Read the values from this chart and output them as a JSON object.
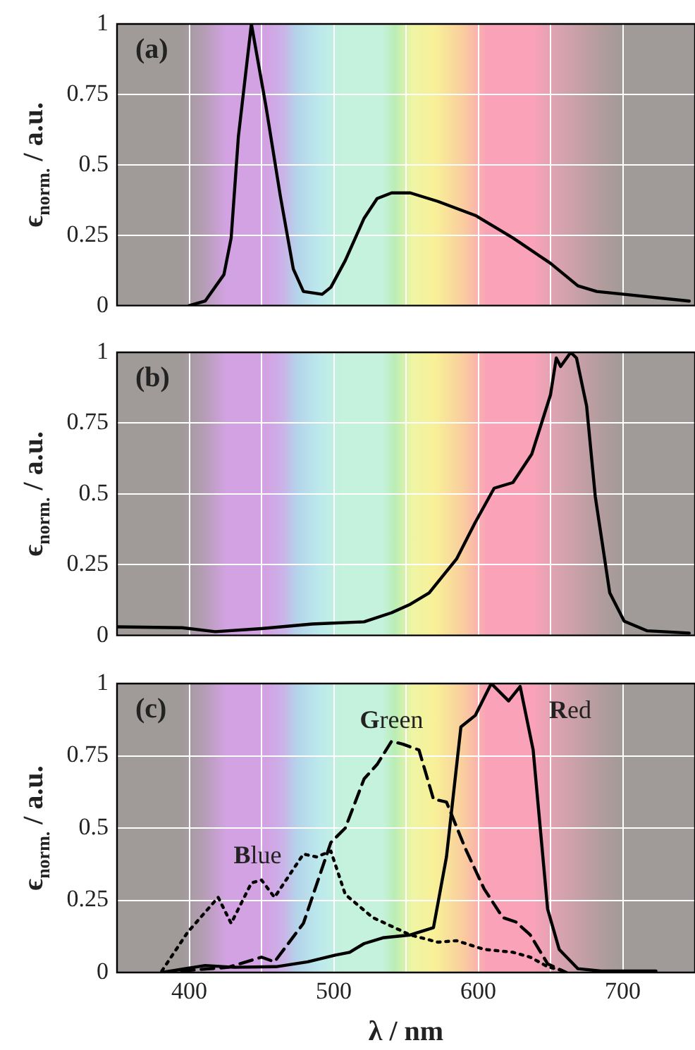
{
  "chart_data": [
    {
      "type": "line",
      "title": "(a)",
      "ylabel": "ϵ$_{norm.}$ / a.u.",
      "xlim": [
        350,
        750
      ],
      "xticks": [
        400,
        {
          "value": 450,
          "label": null
        },
        500,
        {
          "value": 550,
          "label": null
        },
        600,
        {
          "value": 650,
          "label": null
        },
        700
      ],
      "ylim": [
        0,
        1
      ],
      "yticks": [
        0,
        0.25,
        0.5,
        0.75,
        1
      ],
      "grid": true,
      "tick_labels": "y",
      "marker": "none",
      "line_style": "solid",
      "series": [
        {
          "color": "#000000",
          "x": [
            400,
            411,
            424,
            429,
            434,
            443,
            453,
            463,
            472,
            479,
            492,
            498,
            508,
            521,
            530,
            540,
            553,
            572,
            598,
            624,
            650,
            669,
            682,
            701,
            746
          ],
          "values": [
            0,
            0.016,
            0.11,
            0.24,
            0.6,
            1,
            0.71,
            0.39,
            0.13,
            0.05,
            0.04,
            0.065,
            0.16,
            0.31,
            0.38,
            0.4,
            0.4,
            0.37,
            0.32,
            0.24,
            0.15,
            0.07,
            0.05,
            0.04,
            0.016
          ]
        }
      ]
    },
    {
      "type": "line",
      "title": "(b)",
      "ylabel": "ϵ$_{norm.}$ / a.u.",
      "xlim": [
        350,
        750
      ],
      "xticks": [
        400,
        {
          "value": 450,
          "label": null
        },
        500,
        {
          "value": 550,
          "label": null
        },
        600,
        {
          "value": 650,
          "label": null
        },
        700
      ],
      "ylim": [
        0,
        1
      ],
      "yticks": [
        0,
        0.25,
        0.5,
        0.75,
        1
      ],
      "grid": true,
      "tick_labels": "y",
      "marker": "none",
      "line_style": "solid",
      "series": [
        {
          "color": "#000000",
          "x": [
            350,
            395,
            418,
            450,
            485,
            521,
            540,
            553,
            566,
            585,
            598,
            611,
            624,
            637,
            650,
            654,
            657,
            664,
            668,
            675,
            681,
            691,
            701,
            717,
            746
          ],
          "values": [
            0.03,
            0.027,
            0.013,
            0.024,
            0.04,
            0.048,
            0.08,
            0.11,
            0.15,
            0.27,
            0.4,
            0.52,
            0.54,
            0.64,
            0.85,
            0.98,
            0.95,
            1,
            0.98,
            0.81,
            0.49,
            0.15,
            0.05,
            0.016,
            0.008
          ]
        }
      ]
    },
    {
      "type": "line",
      "title": "(c)",
      "xlabel": "λ / nm",
      "ylabel": "ϵ$_{norm.}$ / a.u.",
      "xlim": [
        350,
        750
      ],
      "xticks": [
        400,
        {
          "value": 450,
          "label": null
        },
        500,
        {
          "value": 550,
          "label": null
        },
        600,
        {
          "value": 650,
          "label": null
        },
        700
      ],
      "ylim": [
        0,
        1
      ],
      "yticks": [
        0,
        0.25,
        0.5,
        0.75,
        1
      ],
      "grid": true,
      "marker": "none",
      "series": [
        {
          "name": "Blue",
          "color": "#000000",
          "line_style": "dotted",
          "x": [
            381,
            399,
            420,
            429,
            443,
            450,
            459,
            479,
            488,
            498,
            508,
            527,
            553,
            572,
            585,
            604,
            624,
            636,
            648,
            661
          ],
          "values": [
            0.005,
            0.14,
            0.26,
            0.17,
            0.31,
            0.32,
            0.26,
            0.41,
            0.4,
            0.42,
            0.27,
            0.19,
            0.13,
            0.105,
            0.11,
            0.08,
            0.07,
            0.053,
            0.02,
            0.003
          ]
        },
        {
          "name": "Green",
          "color": "#000000",
          "line_style": "dashed",
          "x": [
            381,
            427,
            450,
            459,
            479,
            498,
            508,
            521,
            530,
            540,
            548,
            559,
            569,
            578,
            591,
            604,
            617,
            626,
            636,
            648,
            661
          ],
          "values": [
            0,
            0.018,
            0.053,
            0.037,
            0.17,
            0.45,
            0.5,
            0.67,
            0.72,
            0.8,
            0.79,
            0.77,
            0.6,
            0.59,
            0.43,
            0.29,
            0.19,
            0.175,
            0.13,
            0.03,
            0
          ]
        },
        {
          "name": "Red",
          "color": "#000000",
          "line_style": "solid",
          "x": [
            381,
            411,
            431,
            460,
            482,
            501,
            511,
            521,
            534,
            553,
            569,
            578,
            588,
            598,
            609,
            621,
            629,
            638,
            648,
            656,
            669,
            685,
            723
          ],
          "values": [
            0,
            0.024,
            0.018,
            0.02,
            0.037,
            0.06,
            0.07,
            0.1,
            0.12,
            0.13,
            0.155,
            0.4,
            0.85,
            0.89,
            1,
            0.94,
            0.99,
            0.77,
            0.22,
            0.08,
            0.013,
            0.005,
            0.005
          ]
        }
      ]
    }
  ]
}
